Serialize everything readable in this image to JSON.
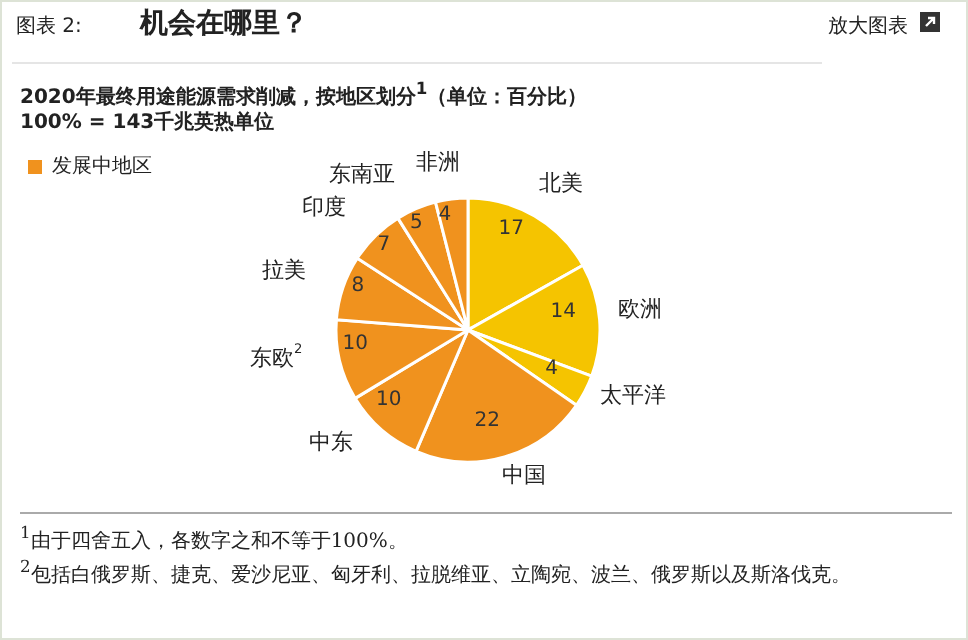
{
  "chart_data": {
    "type": "pie",
    "title": "机会在哪里？",
    "subtitle": "2020年最终用途能源需求削减，按地区划分$^{1}$（单位：百分比）\n100% = 143千兆英热单位",
    "legend_title": "发展中地区",
    "categories": [
      "北美",
      "欧洲",
      "太平洋",
      "中国",
      "中东",
      "东欧$^{2}$",
      "拉美",
      "印度",
      "东南亚",
      "非洲"
    ],
    "values": [
      17,
      14,
      4,
      22,
      10,
      10,
      8,
      7,
      5,
      4
    ],
    "colors": [
      "#f5c400",
      "#f5c400",
      "#f5c400",
      "#f0921e",
      "#f0921e",
      "#f0921e",
      "#f0921e",
      "#f0921e",
      "#f0921e",
      "#f0921e"
    ],
    "data_labels": true,
    "annotations": [
      "图表 2:",
      "放大图表",
      "$^{1}$由于四舍五入，各数字之和不等于100%。",
      "$^{2}$包括白俄罗斯、捷克、爱沙尼亚、匈牙利、拉脱维亚、立陶宛、波兰、俄罗斯以及斯洛伐克。"
    ]
  }
}
